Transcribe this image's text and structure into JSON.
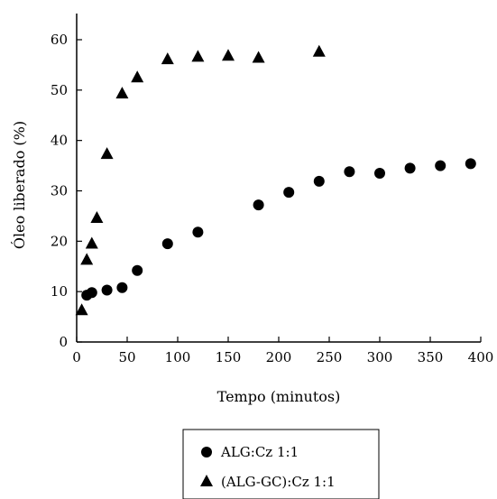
{
  "chart_data": {
    "type": "scatter",
    "xlabel": "Tempo (minutos)",
    "ylabel": "Óleo liberado (%)",
    "xlim": [
      0,
      400
    ],
    "ylim": [
      0,
      65
    ],
    "xticks": [
      0,
      50,
      100,
      150,
      200,
      250,
      300,
      350,
      400
    ],
    "yticks": [
      0,
      10,
      20,
      30,
      40,
      50,
      60
    ],
    "grid": false,
    "legend_position": "bottom",
    "series": [
      {
        "name": "ALG:Cz 1:1",
        "marker": "circle",
        "color": "#000000",
        "points": [
          [
            10,
            9.3
          ],
          [
            15,
            9.8
          ],
          [
            30,
            10.3
          ],
          [
            45,
            10.8
          ],
          [
            60,
            14.2
          ],
          [
            90,
            19.5
          ],
          [
            120,
            21.8
          ],
          [
            180,
            27.2
          ],
          [
            210,
            29.7
          ],
          [
            240,
            31.9
          ],
          [
            270,
            33.8
          ],
          [
            300,
            33.5
          ],
          [
            330,
            34.5
          ],
          [
            360,
            35.0
          ],
          [
            390,
            35.4
          ]
        ]
      },
      {
        "name": "(ALG-GC):Cz 1:1",
        "marker": "triangle",
        "color": "#000000",
        "points": [
          [
            5,
            6.5
          ],
          [
            10,
            16.5
          ],
          [
            15,
            19.7
          ],
          [
            20,
            24.8
          ],
          [
            30,
            37.5
          ],
          [
            45,
            49.5
          ],
          [
            60,
            52.7
          ],
          [
            90,
            56.3
          ],
          [
            120,
            56.8
          ],
          [
            150,
            57.0
          ],
          [
            180,
            56.6
          ],
          [
            240,
            57.8
          ]
        ]
      }
    ]
  }
}
